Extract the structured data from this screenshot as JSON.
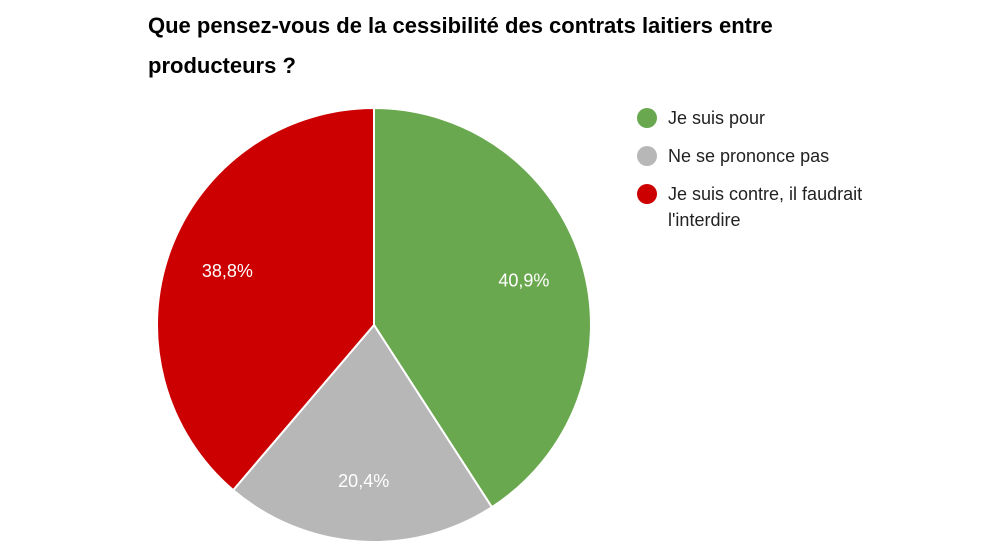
{
  "chart_data": {
    "type": "pie",
    "title": "Que pensez-vous de la cessibilité des contrats laitiers entre producteurs ?",
    "legend_position": "right",
    "slices": [
      {
        "label": "Je suis pour",
        "value": 40.9,
        "display": "40,9%",
        "color": "#6aa84f"
      },
      {
        "label": "Ne se prononce pas",
        "value": 20.4,
        "display": "20,4%",
        "color": "#b7b7b7"
      },
      {
        "label": "Je suis contre, il faudrait l'interdire",
        "value": 38.8,
        "display": "38,8%",
        "color": "#cc0000"
      }
    ]
  }
}
